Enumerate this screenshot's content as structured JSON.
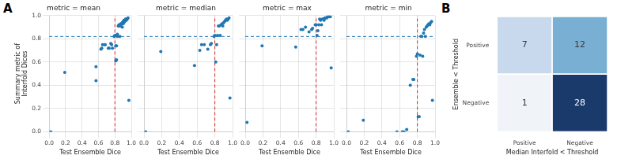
{
  "chart_data": [
    {
      "type": "scatter",
      "title": "metric = mean",
      "annotations": [
        "A"
      ],
      "x": [
        0.02,
        0.19,
        0.57,
        0.57,
        0.63,
        0.64,
        0.65,
        0.68,
        0.68,
        0.72,
        0.73,
        0.75,
        0.76,
        0.77,
        0.79,
        0.8,
        0.81,
        0.81,
        0.82,
        0.82,
        0.83,
        0.83,
        0.84,
        0.85,
        0.85,
        0.86,
        0.87,
        0.87,
        0.88,
        0.89,
        0.89,
        0.9,
        0.9,
        0.91,
        0.91,
        0.92,
        0.92,
        0.93,
        0.93,
        0.94,
        0.94,
        0.95,
        0.96,
        0.97
      ],
      "values": [
        0.0,
        0.51,
        0.56,
        0.44,
        0.71,
        0.72,
        0.75,
        0.75,
        0.75,
        0.72,
        0.72,
        0.76,
        0.75,
        0.72,
        0.82,
        0.83,
        0.61,
        0.74,
        0.62,
        0.74,
        0.84,
        0.82,
        0.91,
        0.92,
        0.91,
        0.82,
        0.93,
        0.91,
        0.93,
        0.94,
        0.9,
        0.93,
        0.95,
        0.94,
        0.96,
        0.95,
        0.96,
        0.97,
        0.96,
        0.96,
        0.97,
        0.97,
        0.98,
        0.27
      ],
      "color": "#1f77b4",
      "xlabel": "Test Ensemble Dice",
      "ylabel": "Summary metric of Interfold Dices",
      "xlim": [
        0.0,
        1.0
      ],
      "ylim": [
        0.0,
        1.0
      ],
      "xticks": [
        {
          "value": 0.0,
          "label": "0.0"
        },
        0.2,
        0.4,
        0.6,
        0.8,
        {
          "value": 1.0,
          "label": "1.0"
        }
      ],
      "yticks": [
        {
          "value": 0.0,
          "label": "0.0"
        },
        0.2,
        0.4,
        0.6,
        0.8,
        {
          "value": 1.0,
          "label": "1.0"
        }
      ],
      "grid": true,
      "hline": {
        "value": 0.82,
        "color": "#1f77b4",
        "line_style": "dashed"
      },
      "vline": {
        "value": 0.8,
        "color": "#d62728",
        "line_style": "dashed"
      }
    },
    {
      "type": "scatter",
      "title": "metric = median",
      "x": [
        0.02,
        0.19,
        0.57,
        0.63,
        0.65,
        0.68,
        0.72,
        0.75,
        0.76,
        0.79,
        0.8,
        0.81,
        0.82,
        0.83,
        0.84,
        0.85,
        0.86,
        0.87,
        0.88,
        0.89,
        0.9,
        0.91,
        0.92,
        0.93,
        0.94,
        0.95,
        0.96,
        0.97
      ],
      "values": [
        0.0,
        0.69,
        0.57,
        0.7,
        0.75,
        0.75,
        0.71,
        0.75,
        0.76,
        0.82,
        0.83,
        0.6,
        0.75,
        0.83,
        0.91,
        0.91,
        0.83,
        0.92,
        0.93,
        0.91,
        0.94,
        0.95,
        0.96,
        0.97,
        0.96,
        0.97,
        0.98,
        0.29
      ],
      "color": "#1f77b4",
      "xlabel": "Test Ensemble Dice",
      "xlim": [
        0.0,
        1.0
      ],
      "ylim": [
        0.0,
        1.0
      ],
      "xticks": [
        {
          "value": 0.0,
          "label": "0.0"
        },
        0.2,
        0.4,
        0.6,
        0.8,
        {
          "value": 1.0,
          "label": "1.0"
        }
      ],
      "yticks": [
        {
          "value": 0.0,
          "label": "0.0"
        },
        0.2,
        0.4,
        0.6,
        0.8,
        {
          "value": 1.0,
          "label": "1.0"
        }
      ],
      "grid": true,
      "tick_labels": "x",
      "hline": {
        "value": 0.82,
        "color": "#1f77b4",
        "line_style": "dashed"
      },
      "vline": {
        "value": 0.8,
        "color": "#d62728",
        "line_style": "dashed"
      }
    },
    {
      "type": "scatter",
      "title": "metric = max",
      "x": [
        0.02,
        0.19,
        0.57,
        0.63,
        0.65,
        0.68,
        0.72,
        0.75,
        0.76,
        0.79,
        0.8,
        0.81,
        0.82,
        0.83,
        0.84,
        0.85,
        0.86,
        0.87,
        0.88,
        0.89,
        0.9,
        0.91,
        0.92,
        0.93,
        0.94,
        0.95,
        0.96,
        0.97
      ],
      "values": [
        0.08,
        0.74,
        0.73,
        0.88,
        0.88,
        0.9,
        0.86,
        0.88,
        0.89,
        0.92,
        0.92,
        0.83,
        0.87,
        0.92,
        0.97,
        0.96,
        0.92,
        0.97,
        0.97,
        0.96,
        0.98,
        0.98,
        0.98,
        0.99,
        0.99,
        0.99,
        0.99,
        0.55
      ],
      "color": "#1f77b4",
      "xlabel": "Test Ensemble Dice",
      "xlim": [
        0.0,
        1.0
      ],
      "ylim": [
        0.0,
        1.0
      ],
      "xticks": [
        {
          "value": 0.0,
          "label": "0.0"
        },
        0.2,
        0.4,
        0.6,
        0.8,
        {
          "value": 1.0,
          "label": "1.0"
        }
      ],
      "yticks": [
        {
          "value": 0.0,
          "label": "0.0"
        },
        0.2,
        0.4,
        0.6,
        0.8,
        {
          "value": 1.0,
          "label": "1.0"
        }
      ],
      "grid": true,
      "tick_labels": "x",
      "hline": {
        "value": 0.82,
        "color": "#1f77b4",
        "line_style": "dashed"
      },
      "vline": {
        "value": 0.8,
        "color": "#d62728",
        "line_style": "dashed"
      }
    },
    {
      "type": "scatter",
      "title": "metric = min",
      "x": [
        0.02,
        0.19,
        0.57,
        0.63,
        0.65,
        0.68,
        0.72,
        0.75,
        0.76,
        0.79,
        0.8,
        0.81,
        0.82,
        0.83,
        0.84,
        0.85,
        0.86,
        0.87,
        0.88,
        0.89,
        0.9,
        0.91,
        0.92,
        0.93,
        0.94,
        0.95,
        0.96,
        0.97
      ],
      "values": [
        0.0,
        0.1,
        0.0,
        0.0,
        0.0,
        0.02,
        0.4,
        0.45,
        0.45,
        0.65,
        0.67,
        0.13,
        0.13,
        0.66,
        0.82,
        0.82,
        0.65,
        0.85,
        0.88,
        0.82,
        0.9,
        0.91,
        0.92,
        0.93,
        0.92,
        0.94,
        0.95,
        0.27
      ],
      "color": "#1f77b4",
      "xlabel": "Test Ensemble Dice",
      "xlim": [
        0.0,
        1.0
      ],
      "ylim": [
        0.0,
        1.0
      ],
      "xticks": [
        {
          "value": 0.0,
          "label": "0.0"
        },
        0.2,
        0.4,
        0.6,
        0.8,
        {
          "value": 1.0,
          "label": "1.0"
        }
      ],
      "yticks": [
        {
          "value": 0.0,
          "label": "0.0"
        },
        0.2,
        0.4,
        0.6,
        0.8,
        {
          "value": 1.0,
          "label": "1.0"
        }
      ],
      "grid": true,
      "tick_labels": "x",
      "hline": {
        "value": 0.82,
        "color": "#1f77b4",
        "line_style": "dashed"
      },
      "vline": {
        "value": 0.8,
        "color": "#d62728",
        "line_style": "dashed"
      }
    },
    {
      "type": "heatmap",
      "annotations": [
        "B"
      ],
      "x": [
        "Positive",
        "Negative"
      ],
      "y": [
        "Positive",
        "Negative"
      ],
      "values": [
        [
          7,
          12
        ],
        [
          1,
          28
        ]
      ],
      "colors": [
        "#c8d9ee",
        "#7aafd4",
        "#f0f4f8",
        "#1a3a6b"
      ],
      "xlabel": "Median Interfold < Threshold",
      "ylabel": "Ensemble < Threshold",
      "data_labels": true
    }
  ]
}
